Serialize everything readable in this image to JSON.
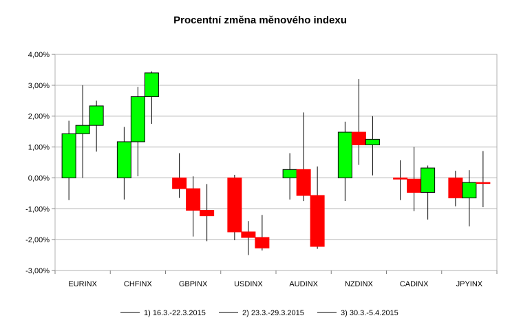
{
  "chart_data": {
    "type": "candlestick",
    "title": "Procentní změna měnového indexu",
    "xlabel": "",
    "ylabel": "",
    "ylim": [
      -3.0,
      4.0
    ],
    "y_tick_step": 1.0,
    "y_tick_labels": [
      "4,00%",
      "3,00%",
      "2,00%",
      "1,00%",
      "0,00%",
      "-1,00%",
      "-2,00%",
      "-3,00%"
    ],
    "grid": true,
    "legend_position": "bottom",
    "up_color": "#00ff00",
    "down_color": "#ff0000",
    "categories": [
      "EURINX",
      "CHFINX",
      "GBPINX",
      "USDINX",
      "AUDINX",
      "NZDINX",
      "CADINX",
      "JPYINX"
    ],
    "series": [
      {
        "name": "1) 16.3.-22.3.2015",
        "candles": [
          {
            "open": 0.0,
            "close": 1.43,
            "high": 1.85,
            "low": -0.72
          },
          {
            "open": 0.0,
            "close": 1.17,
            "high": 1.65,
            "low": -0.7
          },
          {
            "open": 0.0,
            "close": -0.35,
            "high": 0.8,
            "low": -0.65
          },
          {
            "open": 0.0,
            "close": -1.75,
            "high": 0.1,
            "low": -2.02
          },
          {
            "open": 0.0,
            "close": 0.27,
            "high": 0.8,
            "low": -0.7
          },
          {
            "open": 0.0,
            "close": 1.48,
            "high": 1.82,
            "low": -0.75
          },
          {
            "open": 0.0,
            "close": -0.04,
            "high": 0.57,
            "low": -0.72
          },
          {
            "open": 0.0,
            "close": -0.65,
            "high": 0.23,
            "low": -0.92
          }
        ]
      },
      {
        "name": "2) 23.3.-29.3.2015",
        "candles": [
          {
            "open": 1.43,
            "close": 1.7,
            "high": 3.0,
            "low": 0.0
          },
          {
            "open": 1.17,
            "close": 2.63,
            "high": 2.95,
            "low": 0.05
          },
          {
            "open": -0.35,
            "close": -1.05,
            "high": 0.05,
            "low": -1.9
          },
          {
            "open": -1.75,
            "close": -1.93,
            "high": -1.4,
            "low": -2.5
          },
          {
            "open": 0.27,
            "close": -0.57,
            "high": 2.12,
            "low": -0.75
          },
          {
            "open": 1.48,
            "close": 1.07,
            "high": 3.2,
            "low": 0.42
          },
          {
            "open": -0.04,
            "close": -0.47,
            "high": 1.0,
            "low": -1.08
          },
          {
            "open": -0.65,
            "close": -0.15,
            "high": 0.25,
            "low": -1.57
          }
        ]
      },
      {
        "name": "3) 30.3.-5.4.2015",
        "candles": [
          {
            "open": 1.7,
            "close": 2.33,
            "high": 2.5,
            "low": 0.85
          },
          {
            "open": 2.63,
            "close": 3.4,
            "high": 3.45,
            "low": 1.75
          },
          {
            "open": -1.05,
            "close": -1.23,
            "high": -0.2,
            "low": -2.05
          },
          {
            "open": -1.93,
            "close": -2.27,
            "high": -1.2,
            "low": -2.35
          },
          {
            "open": -0.57,
            "close": -2.22,
            "high": 0.37,
            "low": -2.3
          },
          {
            "open": 1.07,
            "close": 1.25,
            "high": 2.0,
            "low": 0.08
          },
          {
            "open": -0.47,
            "close": 0.32,
            "high": 0.4,
            "low": -1.35
          },
          {
            "open": -0.15,
            "close": -0.18,
            "high": 0.87,
            "low": -0.95
          }
        ]
      }
    ]
  }
}
